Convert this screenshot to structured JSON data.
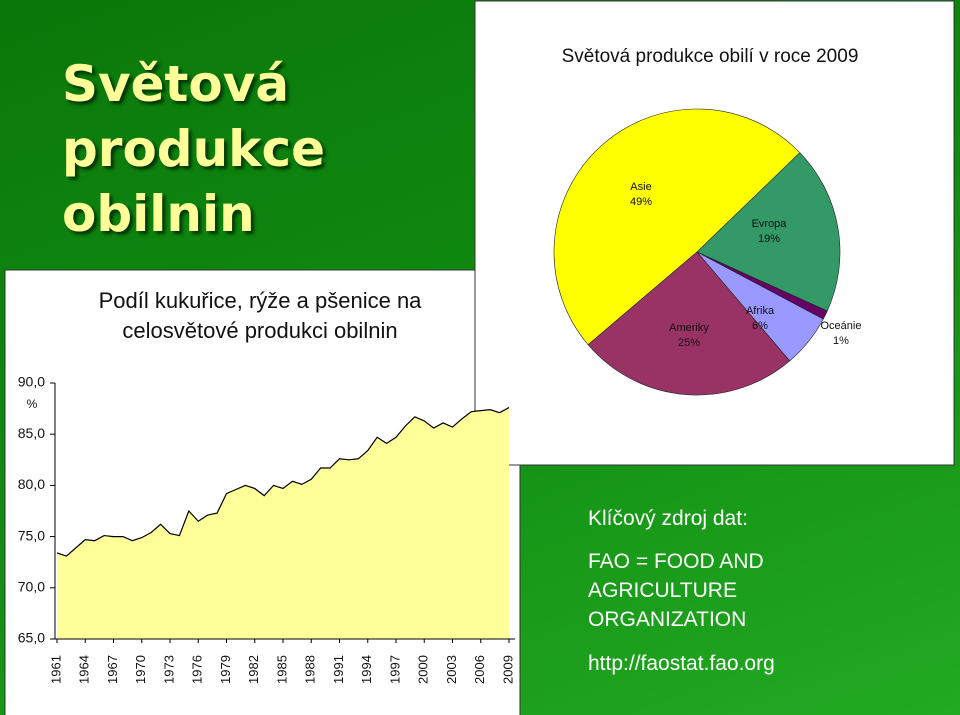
{
  "slide": {
    "title": "Světová produkce obilnin",
    "source": {
      "heading": "Klíčový zdroj dat:",
      "lines": [
        "FAO = FOOD AND",
        "AGRICULTURE",
        "ORGANIZATION"
      ],
      "url": "http://faostat.fao.org"
    }
  },
  "chart_data": [
    {
      "type": "pie",
      "title": "Světová produkce obilí v roce 2009",
      "labels": [
        "Asie",
        "Evropa",
        "Oceánie",
        "Afrika",
        "Ameriky"
      ],
      "values": [
        49,
        19,
        1,
        6,
        25
      ],
      "value_labels": [
        "49%",
        "19%",
        "1%",
        "6%",
        "25%"
      ],
      "colors": [
        "#ffff00",
        "#339966",
        "#660066",
        "#9999ff",
        "#993366"
      ]
    },
    {
      "type": "area",
      "title": "Podíl kukuřice, rýže a pšenice na celosvětové produkci obilnin",
      "y_label": "%",
      "x": [
        1961,
        1962,
        1963,
        1964,
        1965,
        1966,
        1967,
        1968,
        1969,
        1970,
        1971,
        1972,
        1973,
        1974,
        1975,
        1976,
        1977,
        1978,
        1979,
        1980,
        1981,
        1982,
        1983,
        1984,
        1985,
        1986,
        1987,
        1988,
        1989,
        1990,
        1991,
        1992,
        1993,
        1994,
        1995,
        1996,
        1997,
        1998,
        1999,
        2000,
        2001,
        2002,
        2003,
        2004,
        2005,
        2006,
        2007,
        2008,
        2009
      ],
      "values": [
        73.4,
        73.1,
        73.9,
        74.7,
        74.6,
        75.1,
        75.0,
        75.0,
        74.6,
        74.9,
        75.4,
        76.2,
        75.3,
        75.1,
        77.5,
        76.5,
        77.1,
        77.3,
        79.2,
        79.6,
        80.0,
        79.7,
        79.0,
        80.0,
        79.7,
        80.4,
        80.1,
        80.6,
        81.7,
        81.7,
        82.6,
        82.5,
        82.6,
        83.4,
        84.7,
        84.1,
        84.7,
        85.8,
        86.7,
        86.3,
        85.6,
        86.1,
        85.7,
        86.5,
        87.2,
        87.3,
        87.4,
        87.1,
        87.6
      ],
      "color": "#ffff99",
      "xlim": [
        1961,
        2009
      ],
      "xticks": [
        1961,
        1964,
        1967,
        1970,
        1973,
        1976,
        1979,
        1982,
        1985,
        1988,
        1991,
        1994,
        1997,
        2000,
        2003,
        2006,
        2009
      ],
      "ylim": [
        65,
        90
      ],
      "yticks": [
        {
          "value": 65,
          "label": "65,0"
        },
        {
          "value": 70,
          "label": "70,0"
        },
        {
          "value": 75,
          "label": "75,0"
        },
        {
          "value": 80,
          "label": "80,0"
        },
        {
          "value": 85,
          "label": "85,0"
        },
        {
          "value": 90,
          "label": "90,0"
        }
      ]
    }
  ]
}
